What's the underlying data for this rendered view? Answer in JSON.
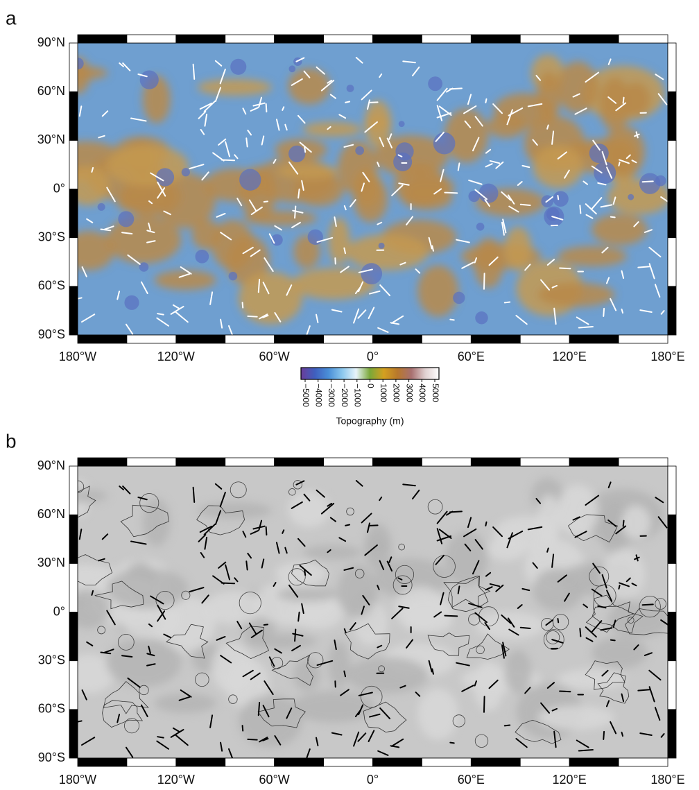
{
  "colorbar": {
    "title": "Topography (m)",
    "colors": [
      "#6a3d9a",
      "#3f5fbf",
      "#4a8fd8",
      "#8cc8ee",
      "#e8f4fa",
      "#7aa838",
      "#d4a020",
      "#b8782c",
      "#a87070",
      "#e0d0d0",
      "#ffffff"
    ],
    "ticks": [
      {
        "value": -5000,
        "label": "−5000"
      },
      {
        "value": -4000,
        "label": "−4000"
      },
      {
        "value": -3000,
        "label": "−3000"
      },
      {
        "value": -2000,
        "label": "−2000"
      },
      {
        "value": -1000,
        "label": "−1000"
      },
      0,
      1000,
      2000,
      3000,
      4000,
      5000
    ]
  },
  "panels": [
    {
      "label": "a",
      "style": "topography",
      "xlim": [
        -180,
        180
      ],
      "ylim": [
        -90,
        90
      ],
      "xticks": [
        {
          "value": -180,
          "label": "180°W"
        },
        {
          "value": -120,
          "label": "120°W"
        },
        {
          "value": -60,
          "label": "60°W"
        },
        {
          "value": 0,
          "label": "0°"
        },
        {
          "value": 60,
          "label": "60°E"
        },
        {
          "value": 120,
          "label": "120°E"
        },
        {
          "value": 180,
          "label": "180°E"
        }
      ],
      "yticks": [
        {
          "value": 90,
          "label": "90°N"
        },
        {
          "value": 60,
          "label": "60°N"
        },
        {
          "value": 30,
          "label": "30°N"
        },
        {
          "value": 0,
          "label": "0°"
        },
        {
          "value": -30,
          "label": "30°S"
        },
        {
          "value": -60,
          "label": "60°S"
        },
        {
          "value": -90,
          "label": "90°S"
        }
      ]
    },
    {
      "label": "b",
      "style": "mosaic",
      "xlim": [
        -180,
        180
      ],
      "ylim": [
        -90,
        90
      ],
      "xticks": [
        {
          "value": -180,
          "label": "180°W"
        },
        {
          "value": -120,
          "label": "120°W"
        },
        {
          "value": -60,
          "label": "60°W"
        },
        {
          "value": 0,
          "label": "0°"
        },
        {
          "value": 60,
          "label": "60°E"
        },
        {
          "value": 120,
          "label": "120°E"
        },
        {
          "value": 180,
          "label": "180°E"
        }
      ],
      "yticks": [
        {
          "value": 90,
          "label": "90°N"
        },
        {
          "value": 60,
          "label": "60°N"
        },
        {
          "value": 30,
          "label": "30°N"
        },
        {
          "value": 0,
          "label": "0°"
        },
        {
          "value": -30,
          "label": "30°S"
        },
        {
          "value": -60,
          "label": "60°S"
        },
        {
          "value": -90,
          "label": "90°S"
        }
      ]
    }
  ]
}
